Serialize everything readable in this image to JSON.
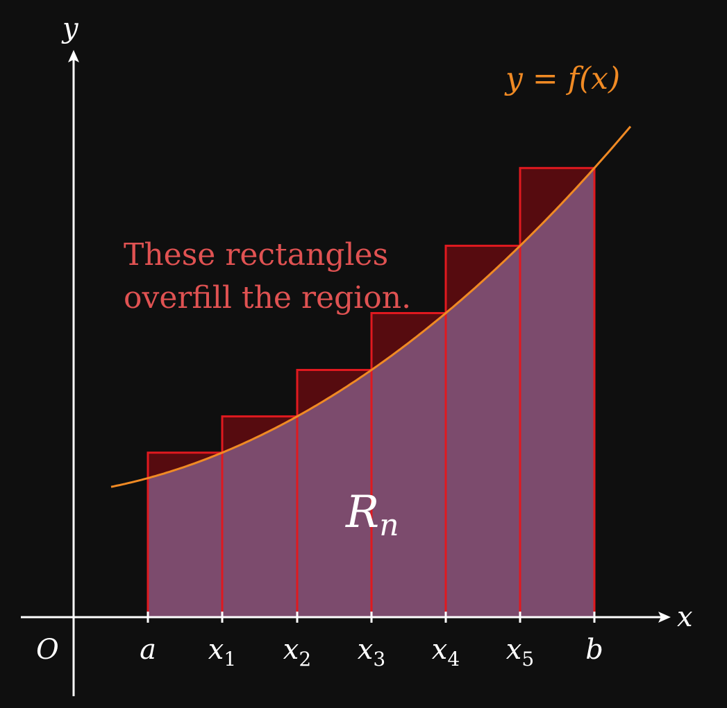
{
  "chart_data": {
    "type": "diagram",
    "axes": {
      "x_label": "x",
      "y_label": "y",
      "origin_label": "O"
    },
    "ticks": [
      {
        "name": "a",
        "main": "a",
        "sub": ""
      },
      {
        "name": "x1",
        "main": "x",
        "sub": "1"
      },
      {
        "name": "x2",
        "main": "x",
        "sub": "2"
      },
      {
        "name": "x3",
        "main": "x",
        "sub": "3"
      },
      {
        "name": "x4",
        "main": "x",
        "sub": "4"
      },
      {
        "name": "x5",
        "main": "x",
        "sub": "5"
      },
      {
        "name": "b",
        "main": "b",
        "sub": ""
      }
    ],
    "curve_label": "y = f(x)",
    "region_label": {
      "main": "R",
      "sub": "n"
    },
    "note_lines": [
      "These rectangles",
      "overfill the region."
    ],
    "rectangle_count": 6,
    "rule": "right endpoint",
    "colors": {
      "background": "#0f0f0f",
      "axes": "#ffffff",
      "curve": "#f08a24",
      "rect_stroke": "#e0191f",
      "rect_overfill": "#560b0f",
      "region_fill": "#7c4b6d",
      "note": "#e05252"
    }
  }
}
